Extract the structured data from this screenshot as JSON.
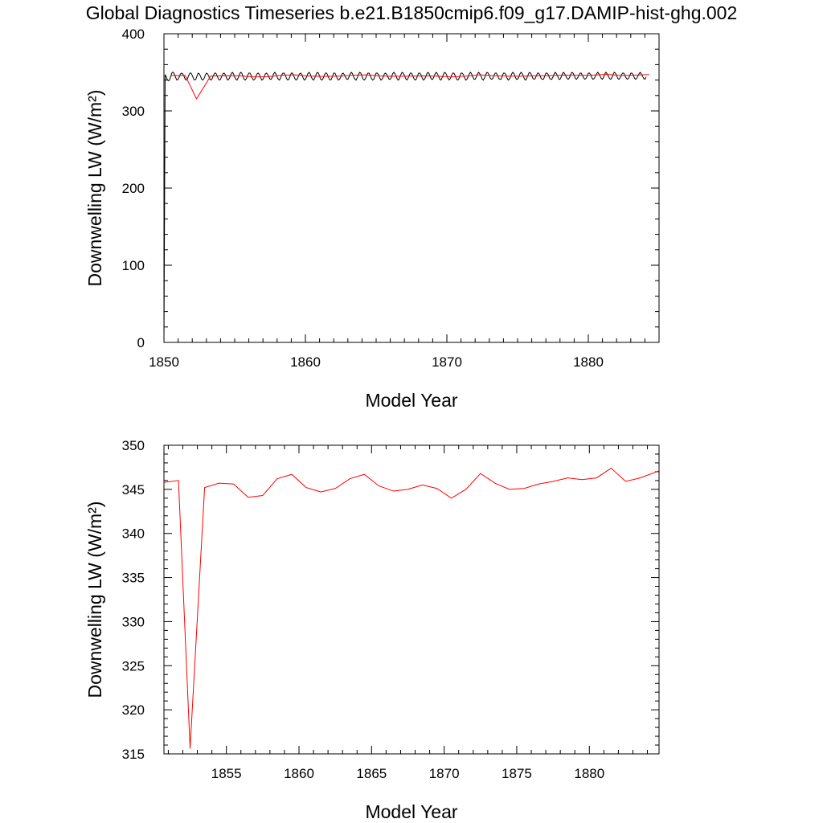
{
  "title": "Global Diagnostics Timeseries b.e21.B1850cmip6.f09_g17.DAMIP-hist-ghg.002",
  "colors": {
    "monthly": "#000000",
    "annual": "#ff0000",
    "axis": "#000000"
  },
  "chart_data": [
    {
      "type": "line",
      "xlabel": "Model Year",
      "ylabel": "Downwelling LW (W/m²)",
      "xlim": [
        1850,
        1885
      ],
      "ylim": [
        0,
        400
      ],
      "xticks": [
        1850,
        1860,
        1870,
        1880
      ],
      "yticks": [
        0,
        100,
        200,
        300,
        400
      ],
      "series": [
        {
          "kind": "monthly",
          "color": "#000000",
          "start_year": 1850.0,
          "step_years": 0.0833333,
          "values": [
            0,
            347,
            344,
            340,
            339,
            341,
            346,
            350,
            350,
            347,
            343,
            340,
            341,
            344,
            348,
            349,
            348,
            345,
            341,
            340,
            342,
            346,
            349,
            349,
            346,
            342,
            340,
            341,
            345,
            349,
            348,
            345,
            341,
            340,
            342,
            346,
            349,
            348,
            345,
            341,
            340,
            342,
            346,
            349,
            349,
            346,
            342,
            340,
            341,
            345,
            348,
            349,
            347,
            343,
            340,
            341,
            344,
            348,
            350,
            348,
            344,
            341,
            340,
            343,
            347,
            350,
            349,
            345,
            341,
            340,
            342,
            346,
            349,
            349,
            346,
            342,
            340,
            341,
            345,
            348,
            349,
            347,
            343,
            340,
            341,
            344,
            348,
            349,
            347,
            344,
            341,
            341,
            344,
            348,
            350,
            348,
            344,
            341,
            340,
            343,
            347,
            349,
            349,
            346,
            342,
            340,
            341,
            345,
            349,
            349,
            346,
            342,
            340,
            341,
            345,
            348,
            349,
            347,
            343,
            340,
            341,
            344,
            348,
            350,
            348,
            344,
            341,
            340,
            343,
            347,
            350,
            349,
            345,
            341,
            340,
            342,
            346,
            349,
            349,
            346,
            342,
            340,
            341,
            345,
            349,
            349,
            346,
            342,
            340,
            341,
            344,
            348,
            349,
            347,
            344,
            341,
            341,
            344,
            348,
            350,
            348,
            344,
            341,
            340,
            343,
            347,
            350,
            349,
            345,
            341,
            340,
            342,
            346,
            349,
            349,
            346,
            342,
            340,
            341,
            345,
            349,
            349,
            347,
            343,
            340,
            341,
            344,
            348,
            349,
            347,
            344,
            341,
            341,
            344,
            348,
            350,
            348,
            345,
            341,
            340,
            343,
            347,
            350,
            349,
            346,
            342,
            340,
            342,
            346,
            349,
            349,
            346,
            342,
            340,
            341,
            345,
            349,
            349,
            347,
            343,
            340,
            341,
            344,
            348,
            350,
            348,
            344,
            341,
            341,
            344,
            348,
            350,
            348,
            345,
            341,
            340,
            343,
            347,
            350,
            349,
            346,
            342,
            340,
            342,
            346,
            349,
            349,
            346,
            342,
            340,
            341,
            345,
            349,
            349,
            347,
            343,
            340,
            341,
            344,
            348,
            350,
            348,
            344,
            341,
            341,
            344,
            348,
            350,
            348,
            345,
            341,
            340,
            343,
            347,
            350,
            349,
            346,
            342,
            341,
            342,
            346,
            349,
            349,
            346,
            342,
            341,
            341,
            345,
            349,
            349,
            347,
            343,
            340,
            341,
            344,
            348,
            350,
            348,
            344,
            341,
            341,
            344,
            348,
            350,
            348,
            345,
            341,
            340,
            343,
            347,
            350,
            349,
            346,
            342,
            341,
            342,
            346,
            349,
            349,
            346,
            342,
            341,
            341,
            345,
            349,
            349,
            347,
            343,
            341,
            341,
            344,
            348,
            350,
            348,
            345,
            341,
            341,
            344,
            348,
            350,
            348,
            345,
            342,
            341,
            343,
            347,
            350,
            349,
            346,
            342,
            341,
            343,
            346,
            349,
            349,
            346,
            343,
            341,
            342,
            345,
            349,
            349,
            347,
            343,
            341,
            342,
            345,
            348,
            350,
            348,
            345,
            342,
            341,
            344,
            348,
            350,
            348,
            345,
            342,
            341,
            343,
            347,
            350,
            349,
            346,
            342,
            341,
            343,
            346,
            349,
            349,
            346,
            343,
            341,
            342,
            345,
            349,
            349,
            347,
            343,
            341,
            342,
            345,
            348,
            350,
            348,
            345,
            342,
            341,
            344
          ]
        },
        {
          "kind": "annual",
          "color": "#ff0000",
          "x": [
            1850.5,
            1851.5,
            1852.3,
            1853.3,
            1854.3,
            1855.3,
            1856.3,
            1857.3,
            1858.3,
            1859.3,
            1860.3,
            1861.3,
            1862.3,
            1863.3,
            1864.3,
            1865.3,
            1866.3,
            1867.3,
            1868.3,
            1869.3,
            1870.3,
            1871.3,
            1872.3,
            1873.3,
            1874.3,
            1875.3,
            1876.3,
            1877.3,
            1878.3,
            1879.3,
            1880.3,
            1881.3,
            1882.3,
            1883.3,
            1884.3
          ],
          "values": [
            345.8,
            346.0,
            315.6,
            345.2,
            345.7,
            345.6,
            344.1,
            344.3,
            346.2,
            346.7,
            345.2,
            344.7,
            345.1,
            346.2,
            346.7,
            345.4,
            344.8,
            345.0,
            345.5,
            345.1,
            344.0,
            345.0,
            346.8,
            345.7,
            345.0,
            345.1,
            345.6,
            345.9,
            346.3,
            346.1,
            346.3,
            347.4,
            345.9,
            346.3,
            347.1
          ]
        }
      ]
    },
    {
      "type": "line",
      "xlabel": "Model Year",
      "ylabel": "Downwelling LW (W/m²)",
      "xlim": [
        1850.7,
        1884.8
      ],
      "ylim": [
        315,
        350
      ],
      "xticks": [
        1855,
        1860,
        1865,
        1870,
        1875,
        1880
      ],
      "yticks": [
        315,
        320,
        325,
        330,
        335,
        340,
        345,
        350
      ],
      "series": [
        {
          "kind": "annual",
          "color": "#ff0000",
          "x": [
            1850.7,
            1851.7,
            1852.5,
            1853.5,
            1854.5,
            1855.5,
            1856.5,
            1857.5,
            1858.5,
            1859.5,
            1860.5,
            1861.5,
            1862.5,
            1863.5,
            1864.5,
            1865.5,
            1866.5,
            1867.5,
            1868.5,
            1869.5,
            1870.5,
            1871.5,
            1872.5,
            1873.5,
            1874.5,
            1875.5,
            1876.5,
            1877.5,
            1878.5,
            1879.5,
            1880.5,
            1881.5,
            1882.5,
            1883.5,
            1884.8
          ],
          "values": [
            345.8,
            346.0,
            315.6,
            345.2,
            345.7,
            345.6,
            344.1,
            344.3,
            346.2,
            346.7,
            345.2,
            344.7,
            345.1,
            346.2,
            346.7,
            345.4,
            344.8,
            345.0,
            345.5,
            345.1,
            344.0,
            345.0,
            346.8,
            345.7,
            345.0,
            345.1,
            345.6,
            345.9,
            346.3,
            346.1,
            346.3,
            347.4,
            345.9,
            346.3,
            347.1
          ]
        }
      ]
    }
  ]
}
